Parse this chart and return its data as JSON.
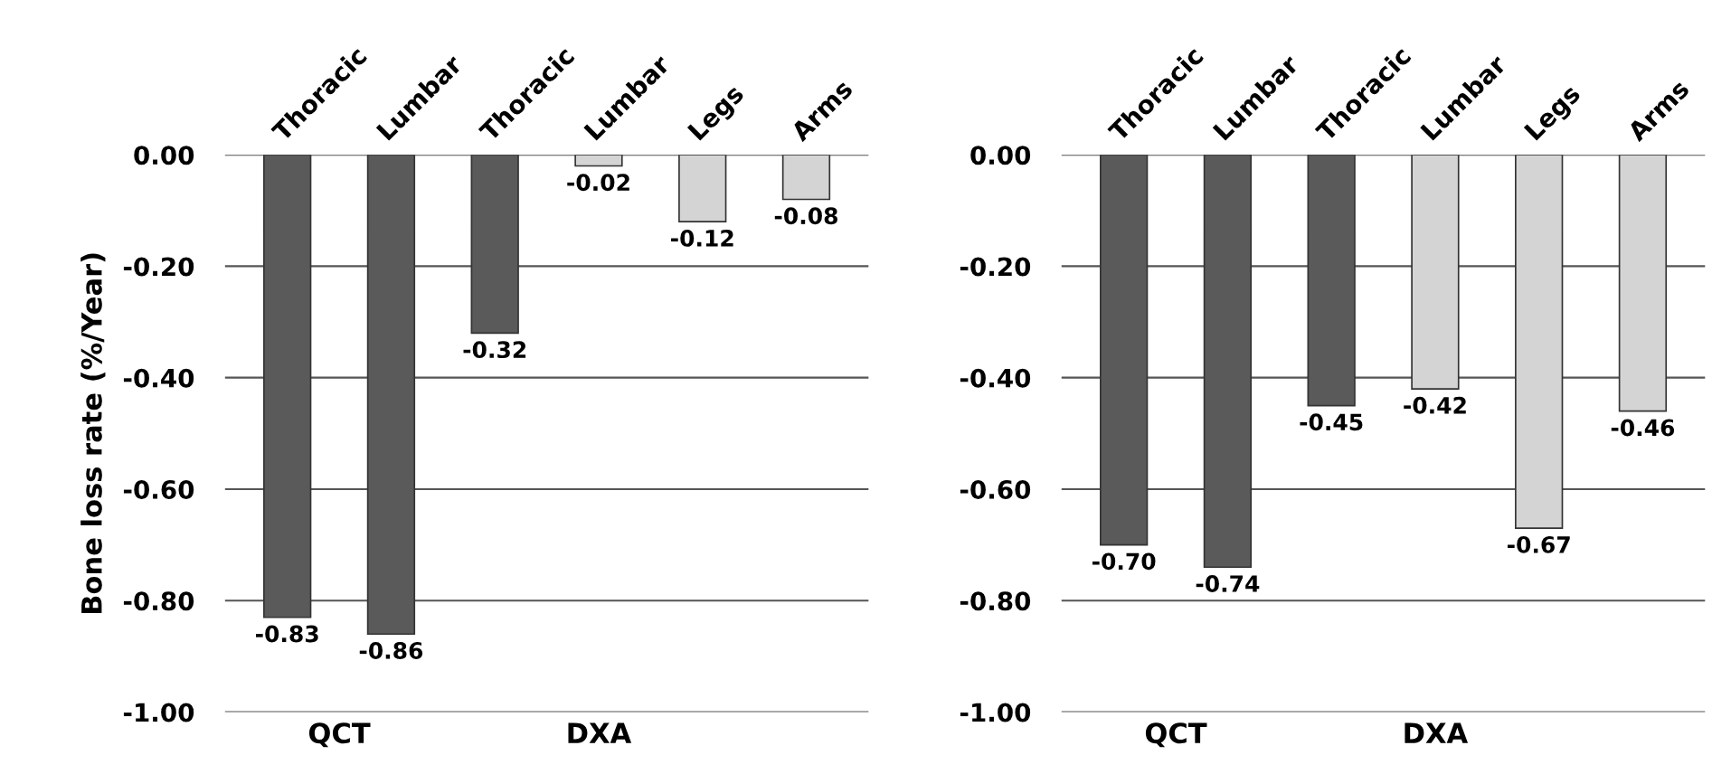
{
  "chart_data": [
    {
      "type": "bar",
      "ylabel": "Bone loss rate (%/Year)",
      "categories": [
        "Thoracic",
        "Lumbar",
        "Thoracic",
        "Lumbar",
        "Legs",
        "Arms"
      ],
      "values": [
        -0.83,
        -0.86,
        -0.32,
        -0.02,
        -0.12,
        -0.08
      ],
      "colors": [
        "#5a5a5a",
        "#5a5a5a",
        "#5a5a5a",
        "#d4d4d4",
        "#d4d4d4",
        "#d4d4d4"
      ],
      "value_labels": [
        "-0.83",
        "-0.86",
        "-0.32",
        "-0.02",
        "-0.12",
        "-0.08"
      ],
      "ylim": [
        -1,
        0
      ],
      "yticks": [
        {
          "value": 0,
          "label": "0.00"
        },
        {
          "value": -0.2,
          "label": "-0.20"
        },
        {
          "value": -0.4,
          "label": "-0.40"
        },
        {
          "value": -0.6,
          "label": "-0.60"
        },
        {
          "value": -0.8,
          "label": "-0.80"
        },
        {
          "value": -1,
          "label": "-1.00"
        }
      ],
      "grid": "y",
      "annotations": [
        "QCT",
        "DXA"
      ]
    },
    {
      "type": "bar",
      "categories": [
        "Thoracic",
        "Lumbar",
        "Thoracic",
        "Lumbar",
        "Legs",
        "Arms"
      ],
      "values": [
        -0.7,
        -0.74,
        -0.45,
        -0.42,
        -0.67,
        -0.46
      ],
      "colors": [
        "#5a5a5a",
        "#5a5a5a",
        "#5a5a5a",
        "#d4d4d4",
        "#d4d4d4",
        "#d4d4d4"
      ],
      "value_labels": [
        "-0.70",
        "-0.74",
        "-0.45",
        "-0.42",
        "-0.67",
        "-0.46"
      ],
      "ylim": [
        -1,
        0
      ],
      "yticks": [
        {
          "value": 0,
          "label": "0.00"
        },
        {
          "value": -0.2,
          "label": "-0.20"
        },
        {
          "value": -0.4,
          "label": "-0.40"
        },
        {
          "value": -0.6,
          "label": "-0.60"
        },
        {
          "value": -0.8,
          "label": "-0.80"
        },
        {
          "value": -1,
          "label": "-1.00"
        }
      ],
      "grid": "y",
      "annotations": [
        "QCT",
        "DXA"
      ]
    }
  ]
}
